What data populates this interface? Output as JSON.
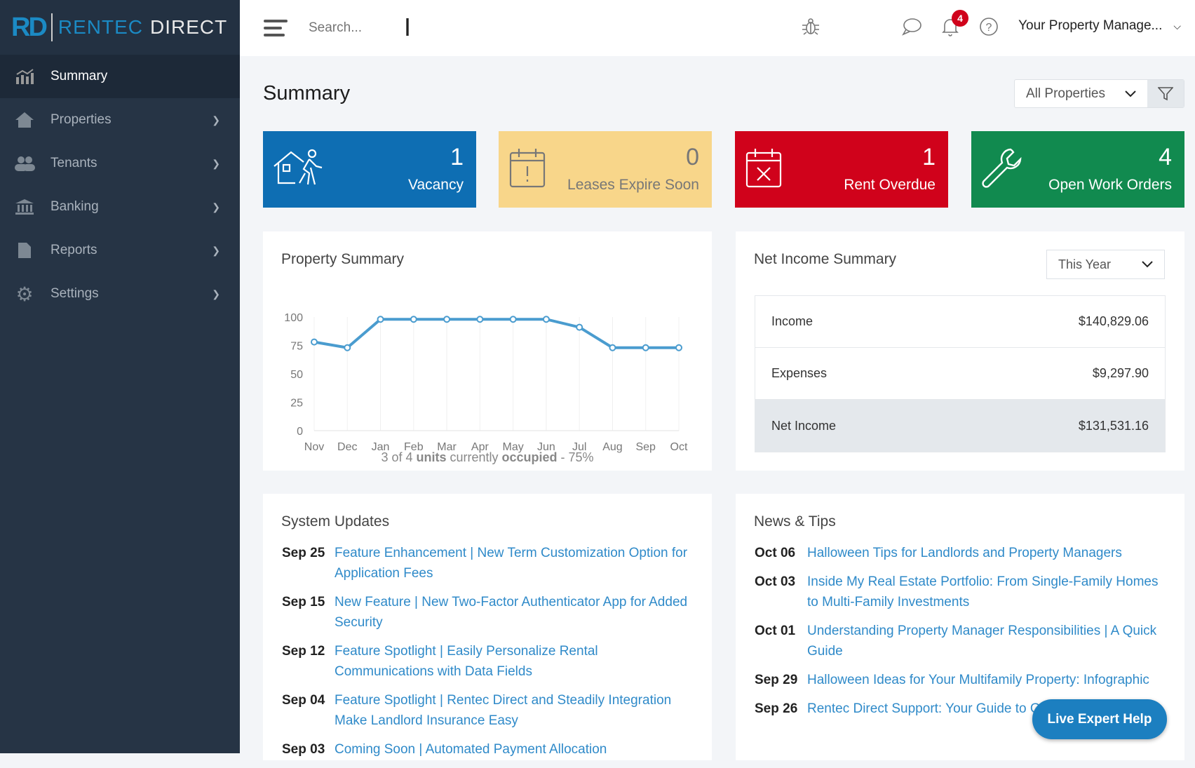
{
  "brand": {
    "logo_mark": "RD",
    "name_part1": "RENTEC",
    "name_part2": "DIRECT"
  },
  "sidebar": {
    "items": [
      {
        "label": "Summary",
        "icon": "chart-icon"
      },
      {
        "label": "Properties",
        "icon": "home-icon"
      },
      {
        "label": "Tenants",
        "icon": "users-icon"
      },
      {
        "label": "Banking",
        "icon": "bank-icon"
      },
      {
        "label": "Reports",
        "icon": "file-icon"
      },
      {
        "label": "Settings",
        "icon": "gear-icon"
      }
    ]
  },
  "header": {
    "search_placeholder": "Search...",
    "notification_count": "4",
    "user": "Your Property Manage..."
  },
  "page": {
    "title": "Summary",
    "property_filter": "All Properties"
  },
  "cards": [
    {
      "value": "1",
      "label": "Vacancy",
      "color": "#0e6eb3"
    },
    {
      "value": "0",
      "label": "Leases Expire Soon",
      "color": "#f8d68a"
    },
    {
      "value": "1",
      "label": "Rent Overdue",
      "color": "#d0021b"
    },
    {
      "value": "4",
      "label": "Open Work Orders",
      "color": "#118a4f"
    }
  ],
  "property_summary": {
    "title": "Property Summary",
    "caption": {
      "p1": "3 of 4 ",
      "units": "units",
      "p2": " currently ",
      "occupied": "occupied",
      "p3": " - 75%"
    }
  },
  "chart_data": {
    "type": "line",
    "title": "Property Summary",
    "categories": [
      "Nov",
      "Dec",
      "Jan",
      "Feb",
      "Mar",
      "Apr",
      "May",
      "Jun",
      "Jul",
      "Aug",
      "Sep",
      "Oct"
    ],
    "values": [
      78,
      73,
      98,
      98,
      98,
      98,
      98,
      98,
      91,
      73,
      73,
      73
    ],
    "yticks": [
      0,
      25,
      50,
      75,
      100
    ],
    "ylim": [
      0,
      100
    ],
    "color": "#4a9ccf"
  },
  "net_income": {
    "title": "Net Income Summary",
    "period": "This Year",
    "rows": [
      {
        "label": "Income",
        "value": "$140,829.06"
      },
      {
        "label": "Expenses",
        "value": "$9,297.90"
      },
      {
        "label": "Net Income",
        "value": "$131,531.16"
      }
    ]
  },
  "system_updates": {
    "title": "System Updates",
    "items": [
      {
        "date": "Sep 25",
        "text": "Feature Enhancement | New Term Customization Option for Application Fees"
      },
      {
        "date": "Sep 15",
        "text": "New Feature | New Two-Factor Authenticator App for Added Security"
      },
      {
        "date": "Sep 12",
        "text": "Feature Spotlight | Easily Personalize Rental Communications with Data Fields"
      },
      {
        "date": "Sep 04",
        "text": "Feature Spotlight | Rentec Direct and Steadily Integration Make Landlord Insurance Easy"
      },
      {
        "date": "Sep 03",
        "text": "Coming Soon | Automated Payment Allocation"
      }
    ]
  },
  "news": {
    "title": "News & Tips",
    "items": [
      {
        "date": "Oct 06",
        "text": "Halloween Tips for Landlords and Property Managers"
      },
      {
        "date": "Oct 03",
        "text": "Inside My Real Estate Portfolio: From Single-Family Homes to Multi-Family Investments"
      },
      {
        "date": "Oct 01",
        "text": "Understanding Property Manager Responsibilities | A Quick Guide"
      },
      {
        "date": "Sep 29",
        "text": "Halloween Ideas for Your Multifamily Property: Infographic"
      },
      {
        "date": "Sep 26",
        "text": "Rentec Direct Support: Your Guide to Getting Expert Help"
      }
    ]
  },
  "live_help": "Live Expert Help"
}
